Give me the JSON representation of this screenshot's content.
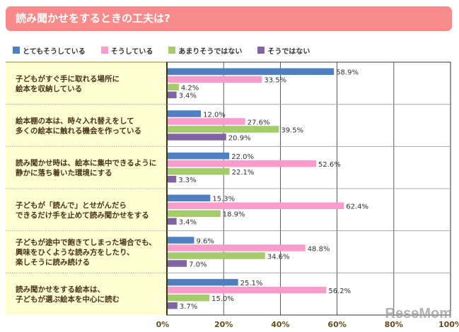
{
  "chart_data": {
    "type": "bar",
    "orientation": "horizontal",
    "title": "読み聞かせをするときの工夫は?",
    "categories": [
      [
        "子どもがすぐ手に取れる場所に",
        "絵本を収納している"
      ],
      [
        "絵本棚の本は、時々入れ替えをして",
        "多くの絵本に触れる機会を作っている"
      ],
      [
        "読み聞かせ時は、絵本に集中できるように",
        "静かに落ち着いた環境にする"
      ],
      [
        "子どもが「読んで」とせがんだら",
        "できるだけ手を止めて読み聞かせをする"
      ],
      [
        "子どもが途中で飽きてしまった場合でも、",
        "興味をひくような読み方をしたり、",
        "楽しそうに読み続ける"
      ],
      [
        "読み聞かせをする絵本は、",
        "子どもが選ぶ絵本を中心に読む"
      ]
    ],
    "series": [
      {
        "name": "とてもそうしている",
        "color": "#4f7fc0",
        "values": [
          58.9,
          12.0,
          22.0,
          15.3,
          9.6,
          25.1
        ]
      },
      {
        "name": "そうしている",
        "color": "#f99ccb",
        "values": [
          33.5,
          27.6,
          52.6,
          62.4,
          48.8,
          56.2
        ]
      },
      {
        "name": "あまりそうではない",
        "color": "#a5cc6b",
        "values": [
          4.2,
          39.5,
          22.1,
          18.9,
          34.6,
          15.0
        ]
      },
      {
        "name": "そうではない",
        "color": "#8165a3",
        "values": [
          3.4,
          20.9,
          3.3,
          3.4,
          7.0,
          3.7
        ]
      }
    ],
    "xlim": [
      0,
      100
    ],
    "xticks": [
      "0%",
      "20%",
      "40%",
      "60%",
      "80%",
      "100%"
    ],
    "grid": true,
    "legend": "top"
  },
  "watermark": "ReseMom"
}
